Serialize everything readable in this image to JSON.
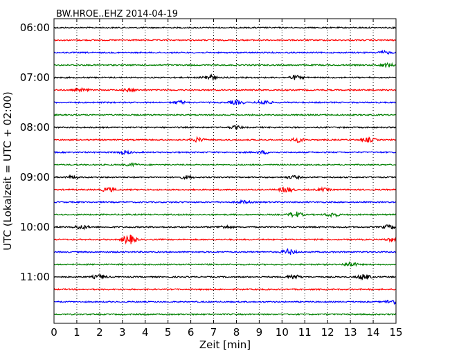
{
  "chart_data": {
    "type": "line",
    "title": "BW.HROE..EHZ 2014-04-19",
    "xlabel": "Zeit  [min]",
    "ylabel": "UTC (Lokalzeit = UTC + 02:00)",
    "xlim": [
      0,
      15
    ],
    "x_ticks": [
      "0",
      "1",
      "2",
      "3",
      "4",
      "5",
      "6",
      "7",
      "8",
      "9",
      "10",
      "11",
      "12",
      "13",
      "14",
      "15"
    ],
    "y_ticks": [
      "06:00",
      "07:00",
      "08:00",
      "09:00",
      "10:00",
      "11:00"
    ],
    "grid": "vertical dotted",
    "trace_interval_minutes": 15,
    "trace_colors": [
      "#000000",
      "#ff0000",
      "#0000ff",
      "#008000"
    ],
    "traces_count": 24,
    "series": [
      {
        "start": "06:00",
        "color": "#000000",
        "events": []
      },
      {
        "start": "06:15",
        "color": "#ff0000",
        "events": []
      },
      {
        "start": "06:30",
        "color": "#0000ff",
        "events": [
          {
            "t": 14.5,
            "amp": 2
          }
        ]
      },
      {
        "start": "06:45",
        "color": "#008000",
        "events": [
          {
            "t": 14.6,
            "amp": 3
          }
        ]
      },
      {
        "start": "07:00",
        "color": "#000000",
        "events": [
          {
            "t": 6.8,
            "amp": 4
          },
          {
            "t": 10.6,
            "amp": 3
          }
        ]
      },
      {
        "start": "07:15",
        "color": "#ff0000",
        "events": [
          {
            "t": 1.2,
            "amp": 2
          },
          {
            "t": 3.3,
            "amp": 2
          }
        ]
      },
      {
        "start": "07:30",
        "color": "#0000ff",
        "events": [
          {
            "t": 5.5,
            "amp": 2
          },
          {
            "t": 8.0,
            "amp": 3
          },
          {
            "t": 9.2,
            "amp": 3
          }
        ]
      },
      {
        "start": "07:45",
        "color": "#008000",
        "events": []
      },
      {
        "start": "08:00",
        "color": "#000000",
        "events": [
          {
            "t": 8.0,
            "amp": 2
          }
        ]
      },
      {
        "start": "08:15",
        "color": "#ff0000",
        "events": [
          {
            "t": 6.3,
            "amp": 3
          },
          {
            "t": 10.7,
            "amp": 3
          },
          {
            "t": 13.8,
            "amp": 3
          }
        ]
      },
      {
        "start": "08:30",
        "color": "#0000ff",
        "events": [
          {
            "t": 3.1,
            "amp": 2
          },
          {
            "t": 9.2,
            "amp": 2
          }
        ]
      },
      {
        "start": "08:45",
        "color": "#008000",
        "events": [
          {
            "t": 3.4,
            "amp": 2
          }
        ]
      },
      {
        "start": "09:00",
        "color": "#000000",
        "events": [
          {
            "t": 0.8,
            "amp": 2
          },
          {
            "t": 5.8,
            "amp": 2
          },
          {
            "t": 10.5,
            "amp": 2
          }
        ]
      },
      {
        "start": "09:15",
        "color": "#ff0000",
        "events": [
          {
            "t": 2.4,
            "amp": 3
          },
          {
            "t": 10.2,
            "amp": 4
          },
          {
            "t": 11.8,
            "amp": 2
          }
        ]
      },
      {
        "start": "09:30",
        "color": "#0000ff",
        "events": [
          {
            "t": 8.3,
            "amp": 2
          }
        ]
      },
      {
        "start": "09:45",
        "color": "#008000",
        "events": [
          {
            "t": 10.6,
            "amp": 4
          },
          {
            "t": 12.2,
            "amp": 3
          }
        ]
      },
      {
        "start": "10:00",
        "color": "#000000",
        "events": [
          {
            "t": 1.2,
            "amp": 3
          },
          {
            "t": 7.5,
            "amp": 2
          },
          {
            "t": 14.7,
            "amp": 3
          }
        ]
      },
      {
        "start": "10:15",
        "color": "#ff0000",
        "events": [
          {
            "t": 3.3,
            "amp": 7
          },
          {
            "t": 14.8,
            "amp": 2
          }
        ]
      },
      {
        "start": "10:30",
        "color": "#0000ff",
        "events": [
          {
            "t": 10.3,
            "amp": 4
          }
        ]
      },
      {
        "start": "10:45",
        "color": "#008000",
        "events": [
          {
            "t": 13.0,
            "amp": 3
          }
        ]
      },
      {
        "start": "11:00",
        "color": "#000000",
        "events": [
          {
            "t": 2.0,
            "amp": 3
          },
          {
            "t": 10.5,
            "amp": 3
          },
          {
            "t": 13.6,
            "amp": 4
          }
        ]
      },
      {
        "start": "11:15",
        "color": "#ff0000",
        "events": []
      },
      {
        "start": "11:30",
        "color": "#0000ff",
        "events": [
          {
            "t": 14.8,
            "amp": 3
          }
        ]
      },
      {
        "start": "11:45",
        "color": "#008000",
        "events": []
      }
    ]
  }
}
